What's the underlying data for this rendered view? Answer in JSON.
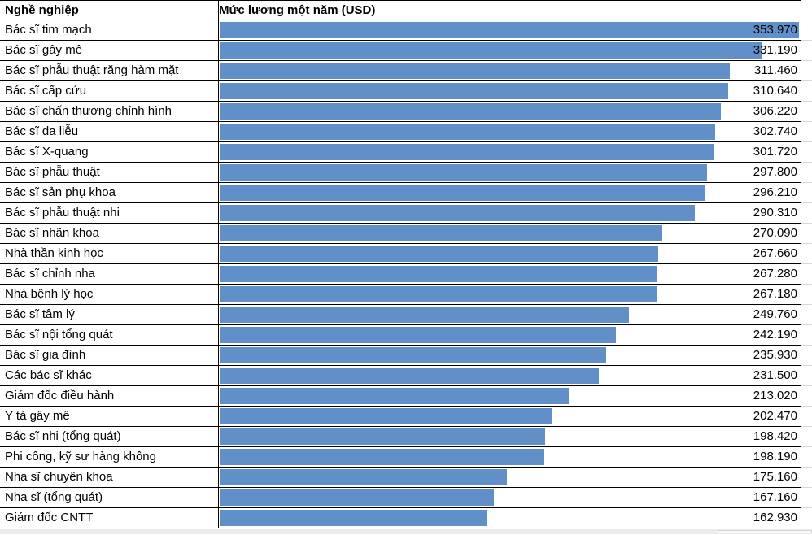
{
  "table": {
    "header": {
      "occupation": "Nghề nghiệp",
      "salary": "Mức lương một năm (USD)"
    }
  },
  "colors": {
    "bar_fill": "#6190C8",
    "cell_border": "#000000",
    "faint_gridline": "#d9d9d9",
    "value_text": "#000000"
  },
  "chart_data": {
    "type": "bar",
    "orientation": "horizontal",
    "title": "Mức lương một năm (USD)",
    "xlabel": "Nghề nghiệp",
    "ylabel": "Mức lương một năm (USD)",
    "value_range": [
      0,
      353970
    ],
    "max_value": 353970,
    "grid": false,
    "legend": "none",
    "categories": [
      "Bác sĩ tim mạch",
      "Bác sĩ gây mê",
      "Bác sĩ phẫu thuật răng hàm mặt",
      "Bác sĩ cấp cứu",
      "Bác sĩ chấn thương chỉnh hình",
      "Bác sĩ da liễu",
      "Bác sĩ X-quang",
      "Bác sĩ phẫu thuật",
      "Bác sĩ sản phụ khoa",
      "Bác sĩ phẫu thuật nhi",
      "Bác sĩ nhãn khoa",
      "Nhà thần kinh học",
      "Bác sĩ chỉnh nha",
      "Nhà bệnh lý học",
      "Bác sĩ tâm lý",
      "Bác sĩ nội tổng quát",
      "Bác sĩ gia đình",
      "Các bác sĩ khác",
      "Giám đốc điều hành",
      "Y tá gây mê",
      "Bác sĩ nhi (tổng quát)",
      "Phi công, kỹ sư hàng không",
      "Nha sĩ chuyên khoa",
      "Nha sĩ (tổng quát)",
      "Giám đốc CNTT"
    ],
    "values": [
      353970,
      331190,
      311460,
      310640,
      306220,
      302740,
      301720,
      297800,
      296210,
      290310,
      270090,
      267660,
      267280,
      267180,
      249760,
      242190,
      235930,
      231500,
      213020,
      202470,
      198420,
      198190,
      175160,
      167160,
      162930
    ],
    "value_labels": [
      "353.970",
      "331.190",
      "311.460",
      "310.640",
      "306.220",
      "302.740",
      "301.720",
      "297.800",
      "296.210",
      "290.310",
      "270.090",
      "267.660",
      "267.280",
      "267.180",
      "249.760",
      "242.190",
      "235.930",
      "231.500",
      "213.020",
      "202.470",
      "198.420",
      "198.190",
      "175.160",
      "167.160",
      "162.930"
    ]
  }
}
